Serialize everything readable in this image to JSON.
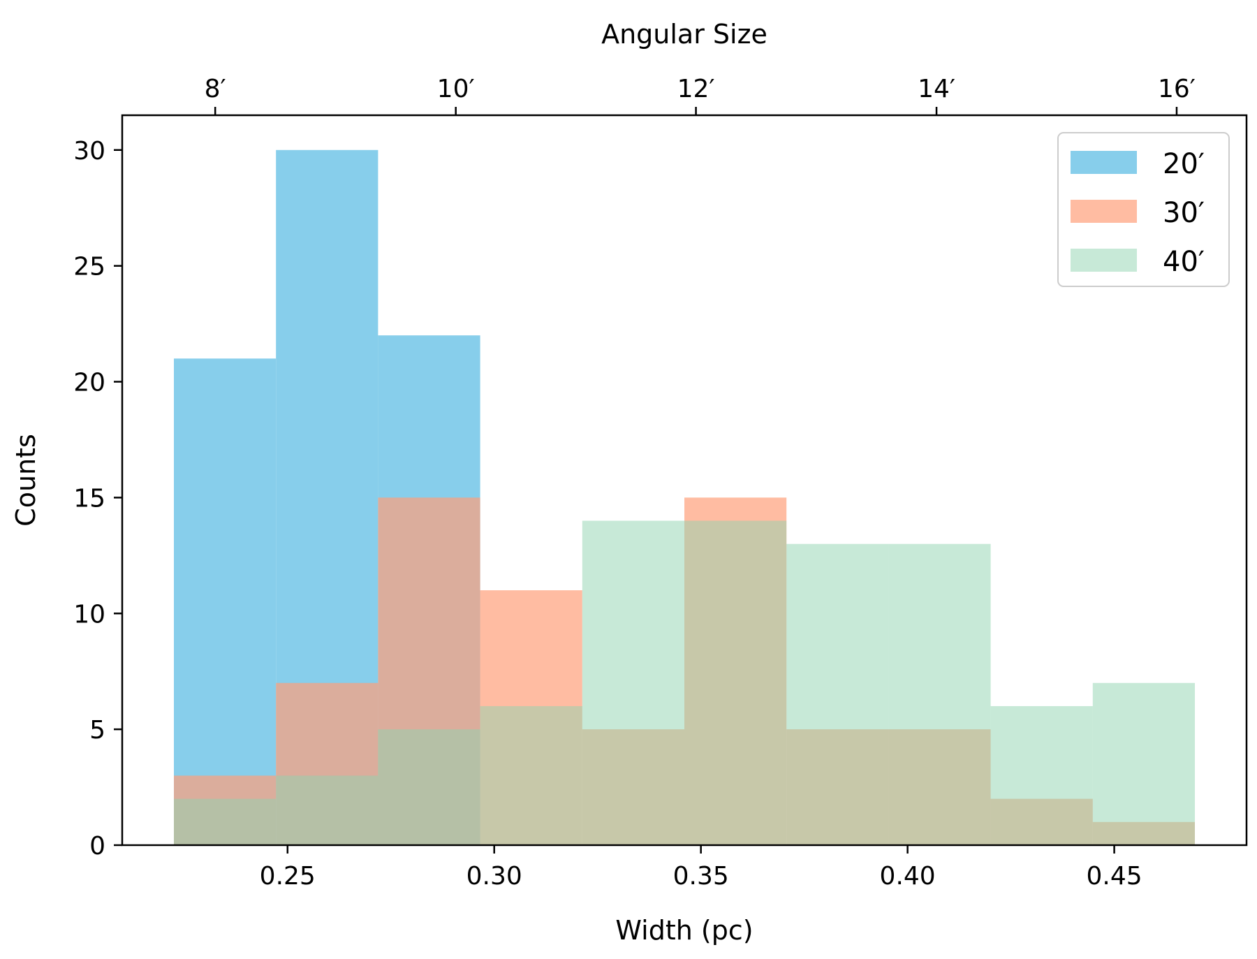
{
  "chart_data": {
    "type": "bar",
    "subtype": "overlapping-histogram",
    "title": "",
    "xlabel": "Width (pc)",
    "ylabel": "Counts",
    "top_xlabel": "Angular Size",
    "xlim": [
      0.21,
      0.482
    ],
    "ylim": [
      0,
      31.5
    ],
    "x_ticks": [
      0.25,
      0.3,
      0.35,
      0.4,
      0.45
    ],
    "x_tick_labels": [
      "0.25",
      "0.30",
      "0.35",
      "0.40",
      "0.45"
    ],
    "y_ticks": [
      0,
      5,
      10,
      15,
      20,
      25,
      30
    ],
    "y_tick_labels": [
      "0",
      "5",
      "10",
      "15",
      "20",
      "25",
      "30"
    ],
    "top_x_ticks": [
      0.2325,
      0.2907,
      0.3488,
      0.407,
      0.4651
    ],
    "top_x_tick_labels": [
      "8′",
      "10′",
      "12′",
      "14′",
      "16′"
    ],
    "bin_edges": [
      0.2225,
      0.2472,
      0.2719,
      0.2966,
      0.3213,
      0.346,
      0.3707,
      0.3954,
      0.4201,
      0.4448,
      0.4695
    ],
    "grid": false,
    "legend_position": "top-right",
    "series": [
      {
        "name": "20′",
        "color": "#87CEEB",
        "values": [
          21,
          30,
          22,
          0,
          0,
          0,
          0,
          0,
          0,
          0
        ]
      },
      {
        "name": "30′",
        "color": "#FFA07A",
        "values": [
          3,
          7,
          15,
          11,
          5,
          15,
          5,
          5,
          2,
          1
        ]
      },
      {
        "name": "40′",
        "color": "#8FD3AF",
        "values": [
          2,
          3,
          5,
          6,
          14,
          14,
          13,
          13,
          6,
          7
        ]
      }
    ],
    "series_opacity": [
      1.0,
      0.7,
      0.5
    ]
  }
}
